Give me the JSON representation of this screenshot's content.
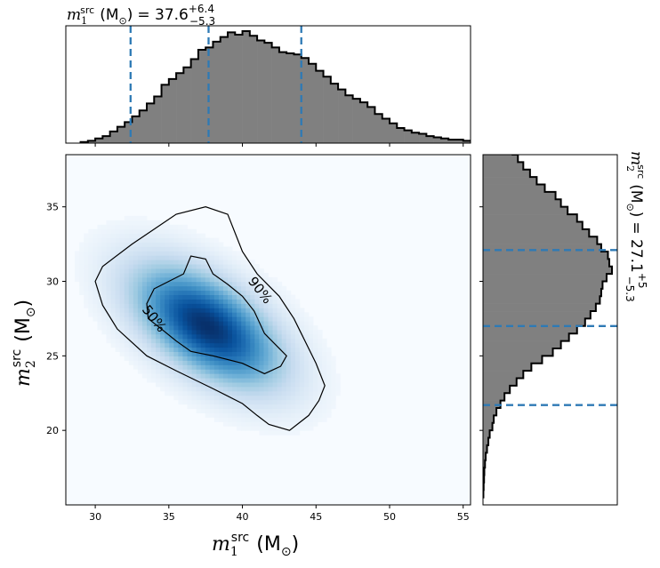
{
  "chart_data": [
    {
      "type": "histogram",
      "panel": "top-marginal",
      "parameter": "m1",
      "title_symbol": "m",
      "title_sub": "1",
      "title_sup": "src",
      "title_unit": "(M",
      "title_unit_sub": "⊙",
      "title_unit_close": ")",
      "title_eq": "= 37.6",
      "title_plus": "+6.4",
      "title_minus": "−5.3",
      "median": 37.6,
      "plus": 6.4,
      "minus": 5.3,
      "quantile_lines": [
        32.4,
        37.7,
        44.0
      ],
      "xlim": [
        28,
        55.5
      ],
      "bins_start": 29.0,
      "bin_width": 0.5,
      "counts": [
        0.01,
        0.02,
        0.04,
        0.06,
        0.1,
        0.14,
        0.18,
        0.23,
        0.28,
        0.34,
        0.4,
        0.5,
        0.55,
        0.6,
        0.65,
        0.72,
        0.8,
        0.82,
        0.87,
        0.91,
        0.95,
        0.93,
        0.96,
        0.92,
        0.88,
        0.86,
        0.82,
        0.78,
        0.77,
        0.76,
        0.73,
        0.68,
        0.62,
        0.57,
        0.51,
        0.46,
        0.41,
        0.38,
        0.35,
        0.31,
        0.25,
        0.21,
        0.17,
        0.13,
        0.11,
        0.09,
        0.08,
        0.06,
        0.05,
        0.04,
        0.03,
        0.03,
        0.02,
        0.02,
        0.02,
        0.01,
        0.01,
        0.01,
        0.005,
        0.003
      ]
    },
    {
      "type": "heatmap",
      "panel": "joint",
      "xlim": [
        28,
        55.5
      ],
      "ylim": [
        15,
        38.5
      ],
      "x_ticks": [
        "30",
        "35",
        "40",
        "45",
        "50",
        "55"
      ],
      "y_ticks": [
        "20",
        "25",
        "30",
        "35"
      ],
      "x_tick_values": [
        30,
        35,
        40,
        45,
        50,
        55
      ],
      "y_tick_values": [
        20,
        25,
        30,
        35
      ],
      "density_peak": [
        37.6,
        27.0
      ],
      "colormap": "Blues",
      "xlabel_symbol": "m",
      "xlabel_sub": "1",
      "xlabel_sup": "src",
      "xlabel_unit": "(M",
      "xlabel_unit_sub": "⊙",
      "xlabel_unit_close": ")",
      "ylabel_symbol": "m",
      "ylabel_sub": "2",
      "ylabel_sup": "src",
      "ylabel_unit": "(M",
      "ylabel_unit_sub": "⊙",
      "ylabel_unit_close": ")",
      "contours": [
        {
          "label": "90%",
          "label_at": [
            41.2,
            29.4
          ],
          "points": [
            [
              30.0,
              30.0
            ],
            [
              30.5,
              31.0
            ],
            [
              32.5,
              32.5
            ],
            [
              35.5,
              34.5
            ],
            [
              37.5,
              35.0
            ],
            [
              39.0,
              34.5
            ],
            [
              40.0,
              32.0
            ],
            [
              41.0,
              30.5
            ],
            [
              42.5,
              29.0
            ],
            [
              43.5,
              27.5
            ],
            [
              44.0,
              26.5
            ],
            [
              45.0,
              24.5
            ],
            [
              45.6,
              23.0
            ],
            [
              45.2,
              22.0
            ],
            [
              44.5,
              21.0
            ],
            [
              43.2,
              20.0
            ],
            [
              41.8,
              20.4
            ],
            [
              41.0,
              21.0
            ],
            [
              40.0,
              21.8
            ],
            [
              38.0,
              22.8
            ],
            [
              35.5,
              24.0
            ],
            [
              33.5,
              25.0
            ],
            [
              31.5,
              26.8
            ],
            [
              30.5,
              28.4
            ],
            [
              30.0,
              30.0
            ]
          ]
        },
        {
          "label": "50%",
          "label_at": [
            34.0,
            27.5
          ],
          "points": [
            [
              33.5,
              28.5
            ],
            [
              34.0,
              29.5
            ],
            [
              35.0,
              30.0
            ],
            [
              36.0,
              30.5
            ],
            [
              36.5,
              31.7
            ],
            [
              37.5,
              31.5
            ],
            [
              38.0,
              30.5
            ],
            [
              39.0,
              29.8
            ],
            [
              40.0,
              29.0
            ],
            [
              40.8,
              28.0
            ],
            [
              41.5,
              26.5
            ],
            [
              42.5,
              25.5
            ],
            [
              43.0,
              25.0
            ],
            [
              42.6,
              24.3
            ],
            [
              41.5,
              23.8
            ],
            [
              40.0,
              24.5
            ],
            [
              38.0,
              25.0
            ],
            [
              36.5,
              25.3
            ],
            [
              35.5,
              26.0
            ],
            [
              34.5,
              26.8
            ],
            [
              33.6,
              27.5
            ],
            [
              33.5,
              28.5
            ]
          ]
        }
      ]
    },
    {
      "type": "histogram",
      "panel": "right-marginal",
      "orientation": "horizontal",
      "parameter": "m2",
      "title_symbol": "m",
      "title_sub": "2",
      "title_sup": "src",
      "title_unit": "(M",
      "title_unit_sub": "⊙",
      "title_unit_close": ")",
      "title_eq": "= 27.1",
      "title_plus": "+5",
      "title_minus": "−5.3",
      "median": 27.1,
      "plus": 5.0,
      "minus": 5.3,
      "quantile_lines": [
        21.7,
        27.0,
        32.1
      ],
      "ylim": [
        15,
        38.5
      ],
      "bins_start": 15.5,
      "bin_width": 0.5,
      "counts": [
        0.003,
        0.005,
        0.008,
        0.01,
        0.015,
        0.02,
        0.03,
        0.04,
        0.05,
        0.07,
        0.08,
        0.1,
        0.13,
        0.16,
        0.2,
        0.25,
        0.3,
        0.36,
        0.44,
        0.52,
        0.58,
        0.64,
        0.7,
        0.76,
        0.8,
        0.84,
        0.87,
        0.88,
        0.89,
        0.92,
        0.96,
        0.94,
        0.93,
        0.88,
        0.85,
        0.79,
        0.74,
        0.7,
        0.63,
        0.58,
        0.54,
        0.46,
        0.4,
        0.35,
        0.3,
        0.26,
        0.22,
        0.18,
        0.14,
        0.12,
        0.1,
        0.08,
        0.06,
        0.05,
        0.035,
        0.025,
        0.02,
        0.015,
        0.01,
        0.008,
        0.005,
        0.003,
        0.002,
        0.001,
        0.001,
        0.001,
        0.0005,
        0.0005,
        0.0003,
        0.0002
      ]
    }
  ]
}
